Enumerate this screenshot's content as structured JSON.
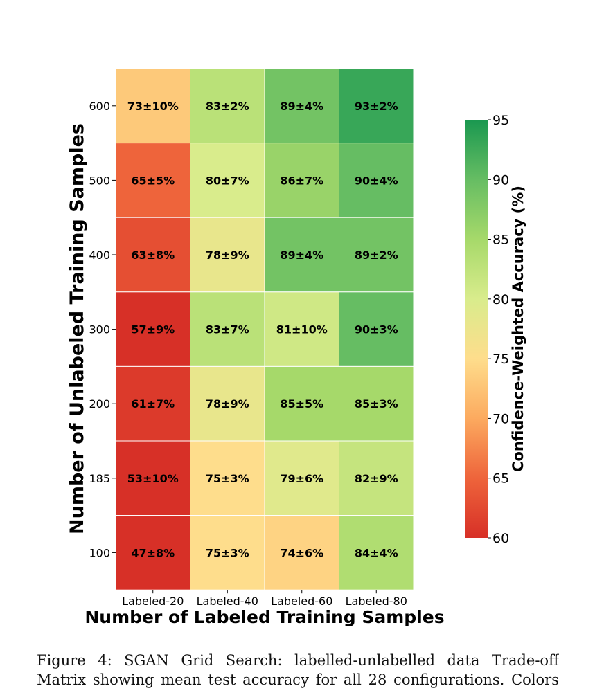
{
  "chart_data": {
    "type": "heatmap",
    "xlabel": "Number of Labeled Training Samples",
    "ylabel": "Number of Unlabeled Training Samples",
    "x_categories": [
      "Labeled-20",
      "Labeled-40",
      "Labeled-60",
      "Labeled-80"
    ],
    "y_categories": [
      "600",
      "500",
      "400",
      "300",
      "200",
      "185",
      "100"
    ],
    "values": [
      [
        73,
        83,
        89,
        93
      ],
      [
        65,
        80,
        86,
        90
      ],
      [
        63,
        78,
        89,
        89
      ],
      [
        57,
        83,
        81,
        90
      ],
      [
        61,
        78,
        85,
        85
      ],
      [
        53,
        75,
        79,
        82
      ],
      [
        47,
        75,
        74,
        84
      ]
    ],
    "cell_labels": [
      [
        "73±10%",
        "83±2%",
        "89±4%",
        "93±2%"
      ],
      [
        "65±5%",
        "80±7%",
        "86±7%",
        "90±4%"
      ],
      [
        "63±8%",
        "78±9%",
        "89±4%",
        "89±2%"
      ],
      [
        "57±9%",
        "83±7%",
        "81±10%",
        "90±3%"
      ],
      [
        "61±7%",
        "78±9%",
        "85±5%",
        "85±3%"
      ],
      [
        "53±10%",
        "75±3%",
        "79±6%",
        "82±9%"
      ],
      [
        "47±8%",
        "75±3%",
        "74±6%",
        "84±4%"
      ]
    ],
    "colorbar": {
      "label": "Confidence-Weighted Accuracy (%)",
      "range": [
        60,
        95
      ],
      "ticks": [
        "60",
        "65",
        "70",
        "75",
        "80",
        "85",
        "90",
        "95"
      ],
      "colormap": "red-yellow-green"
    }
  },
  "caption": {
    "text": "Figure 4: SGAN Grid Search: labelled-unlabelled data Trade-off Matrix showing mean test accuracy for all 28 configurations. Colors"
  }
}
